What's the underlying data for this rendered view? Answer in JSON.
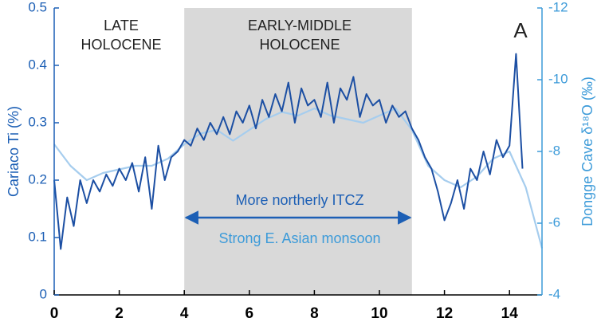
{
  "chart_data": {
    "type": "line",
    "xlabel": null,
    "ylabel": "Cariaco Ti (%)",
    "y2label": "Dongge Cave δ¹⁸O (‰)",
    "xlim": [
      0,
      15
    ],
    "xticks": [
      0,
      2,
      4,
      6,
      8,
      10,
      12,
      14
    ],
    "ylim": [
      0,
      0.5
    ],
    "yticks": [
      0,
      0.1,
      0.2,
      0.3,
      0.4,
      0.5
    ],
    "y2lim": [
      -4,
      -12
    ],
    "y2ticks": [
      -12,
      -10,
      -8,
      -6,
      -4
    ],
    "shaded_span": [
      4,
      11
    ],
    "annotations": [
      "LATE",
      "HOLOCENE",
      "EARLY-MIDDLE",
      "HOLOCENE",
      "A",
      "More northerly ITCZ",
      "Strong E. Asian monsoon"
    ],
    "series": [
      {
        "name": "Cariaco Ti",
        "color": "#1c4fa3",
        "x": [
          0,
          0.2,
          0.4,
          0.6,
          0.8,
          1,
          1.2,
          1.4,
          1.6,
          1.8,
          2,
          2.2,
          2.4,
          2.6,
          2.8,
          3,
          3.2,
          3.4,
          3.6,
          3.8,
          4,
          4.2,
          4.4,
          4.6,
          4.8,
          5,
          5.2,
          5.4,
          5.6,
          5.8,
          6,
          6.2,
          6.4,
          6.6,
          6.8,
          7,
          7.2,
          7.4,
          7.6,
          7.8,
          8,
          8.2,
          8.4,
          8.6,
          8.8,
          9,
          9.2,
          9.4,
          9.6,
          9.8,
          10,
          10.2,
          10.4,
          10.6,
          10.8,
          11,
          11.2,
          11.4,
          11.6,
          11.8,
          12,
          12.2,
          12.4,
          12.6,
          12.8,
          13,
          13.2,
          13.4,
          13.6,
          13.8,
          14,
          14.2,
          14.4
        ],
        "values": [
          0.2,
          0.08,
          0.17,
          0.12,
          0.2,
          0.16,
          0.2,
          0.18,
          0.21,
          0.19,
          0.22,
          0.2,
          0.23,
          0.18,
          0.24,
          0.15,
          0.26,
          0.2,
          0.24,
          0.25,
          0.27,
          0.26,
          0.29,
          0.27,
          0.3,
          0.28,
          0.31,
          0.28,
          0.32,
          0.3,
          0.33,
          0.29,
          0.34,
          0.31,
          0.35,
          0.32,
          0.37,
          0.3,
          0.36,
          0.33,
          0.34,
          0.31,
          0.37,
          0.3,
          0.36,
          0.34,
          0.38,
          0.31,
          0.35,
          0.33,
          0.34,
          0.3,
          0.33,
          0.31,
          0.32,
          0.29,
          0.27,
          0.24,
          0.22,
          0.18,
          0.13,
          0.16,
          0.2,
          0.15,
          0.22,
          0.2,
          0.25,
          0.21,
          0.27,
          0.24,
          0.26,
          0.42,
          0.22
        ]
      },
      {
        "name": "Dongge Cave δ¹⁸O",
        "color": "#a6cdee",
        "axis": "y2",
        "x": [
          0,
          0.5,
          1,
          1.5,
          2,
          2.5,
          3,
          3.5,
          4,
          4.5,
          5,
          5.5,
          6,
          6.5,
          7,
          7.5,
          8,
          8.5,
          9,
          9.5,
          10,
          10.5,
          11,
          11.5,
          12,
          12.5,
          13,
          13.5,
          14,
          14.5,
          15
        ],
        "values": [
          -8.2,
          -7.6,
          -7.2,
          -7.4,
          -7.5,
          -7.6,
          -7.6,
          -7.8,
          -8.2,
          -8.5,
          -8.6,
          -8.3,
          -8.6,
          -8.9,
          -9.1,
          -9,
          -9.2,
          -9,
          -8.9,
          -8.8,
          -9,
          -9.2,
          -8.6,
          -7.6,
          -7.2,
          -7,
          -7.3,
          -7.8,
          -8,
          -7,
          -5.3
        ]
      }
    ]
  }
}
